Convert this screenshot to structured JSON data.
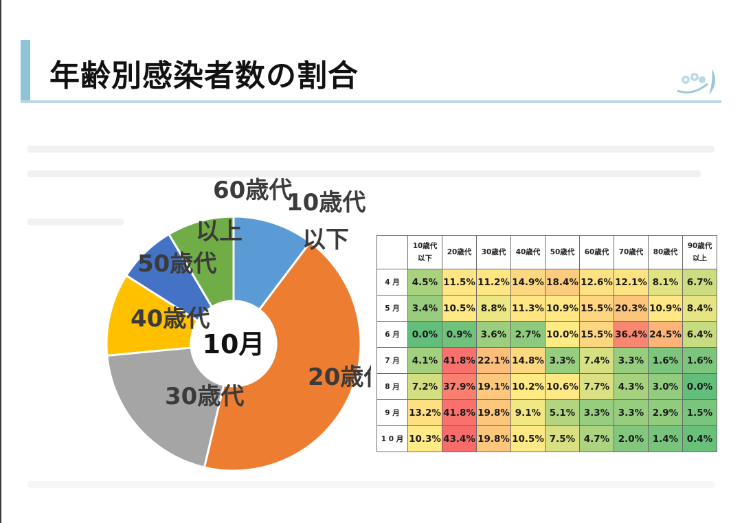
{
  "page": {
    "title": "年齢別感染者数の割合"
  },
  "logo": {
    "icon": "lily-of-the-valley-icon"
  },
  "chart_data": [
    {
      "type": "pie",
      "center_label": "10月",
      "categories": [
        "10歳代以下",
        "20歳代",
        "30歳代",
        "40歳代",
        "50歳代",
        "60歳代以上"
      ],
      "label_lines": [
        [
          "10歳代",
          "以下"
        ],
        [
          "20歳代"
        ],
        [
          "30歳代"
        ],
        [
          "40歳代"
        ],
        [
          "50歳代"
        ],
        [
          "60歳代",
          "以上"
        ]
      ],
      "values": [
        10.3,
        43.4,
        19.8,
        10.5,
        7.5,
        8.5
      ],
      "colors": [
        "#5b9bd5",
        "#ed7d31",
        "#a5a5a5",
        "#ffc000",
        "#4472c4",
        "#70ad47"
      ]
    },
    {
      "type": "heatmap",
      "columns": [
        [
          "10歳代",
          "以下"
        ],
        [
          "20歳代"
        ],
        [
          "30歳代"
        ],
        [
          "40歳代"
        ],
        [
          "50歳代"
        ],
        [
          "60歳代"
        ],
        [
          "70歳代"
        ],
        [
          "80歳代"
        ],
        [
          "90歳代",
          "以上"
        ]
      ],
      "rows": [
        "4 月",
        "5 月",
        "6 月",
        "7 月",
        "8 月",
        "9 月",
        "1 0 月"
      ],
      "values": [
        [
          4.5,
          11.5,
          11.2,
          14.9,
          18.4,
          12.6,
          12.1,
          8.1,
          6.7
        ],
        [
          3.4,
          10.5,
          8.8,
          11.3,
          10.9,
          15.5,
          20.3,
          10.9,
          8.4
        ],
        [
          0.0,
          0.9,
          3.6,
          2.7,
          10.0,
          15.5,
          36.4,
          24.5,
          6.4
        ],
        [
          4.1,
          41.8,
          22.1,
          14.8,
          3.3,
          7.4,
          3.3,
          1.6,
          1.6
        ],
        [
          7.2,
          37.9,
          19.1,
          10.2,
          10.6,
          7.7,
          4.3,
          3.0,
          0.0
        ],
        [
          13.2,
          41.8,
          19.8,
          9.1,
          5.1,
          3.3,
          3.3,
          2.9,
          1.5
        ],
        [
          10.3,
          43.4,
          19.8,
          10.5,
          7.5,
          4.7,
          2.0,
          1.4,
          0.4
        ]
      ],
      "value_suffix": "%"
    }
  ]
}
